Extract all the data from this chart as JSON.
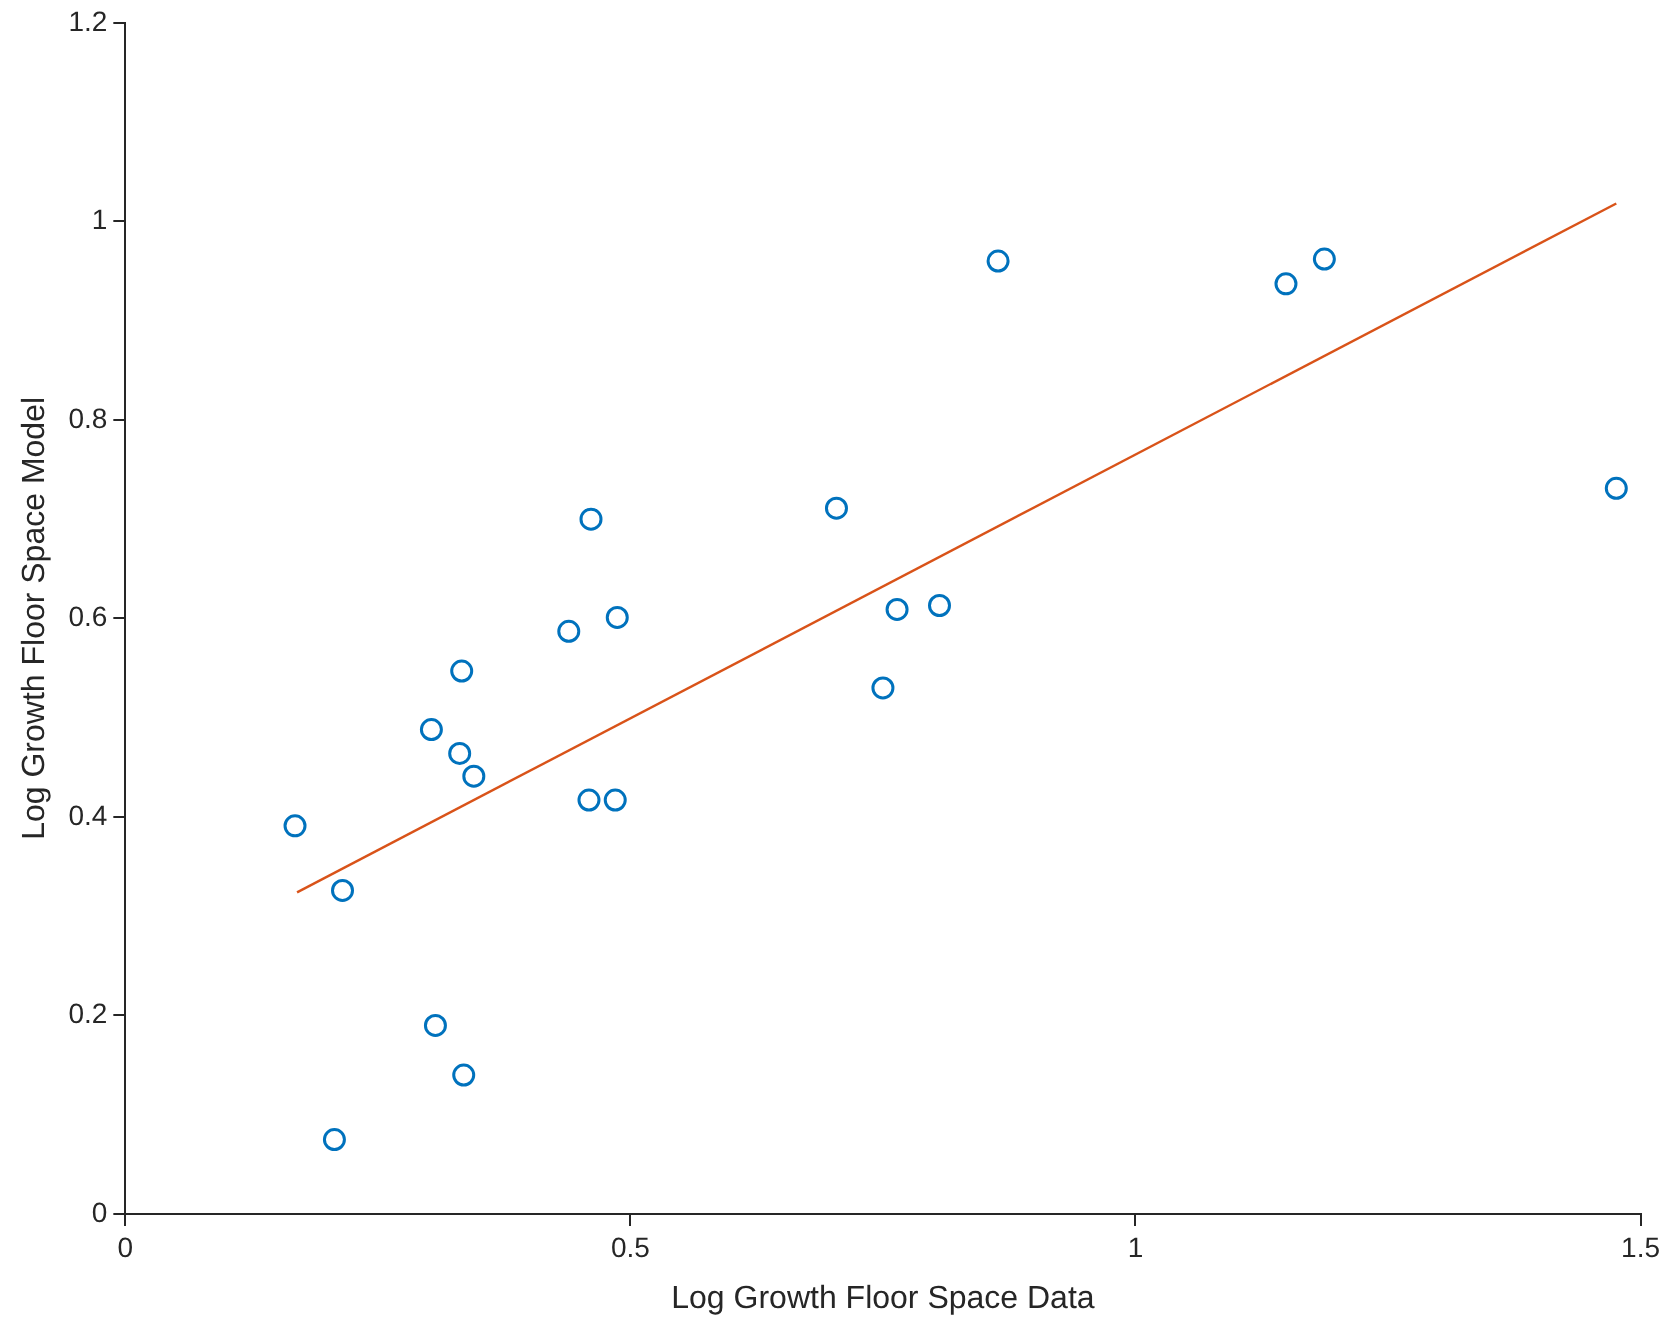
{
  "chart_data": {
    "type": "scatter",
    "xlabel": "Log Growth Floor Space Data",
    "ylabel": "Log Growth Floor Space Model",
    "xlim": [
      0,
      1.5
    ],
    "xticks": [
      0,
      0.5,
      1,
      1.5
    ],
    "ylim": [
      0,
      1.2
    ],
    "yticks": [
      0,
      0.2,
      0.4,
      0.6,
      0.8,
      1,
      1.2
    ],
    "legend": false,
    "series": [
      {
        "type": "scatter",
        "marker": "circle",
        "color": "#0072bd",
        "x": [
          0.168,
          0.215,
          0.207,
          0.303,
          0.307,
          0.331,
          0.333,
          0.335,
          0.345,
          0.439,
          0.461,
          0.459,
          0.487,
          0.485,
          0.704,
          0.75,
          0.764,
          0.806,
          0.864,
          1.149,
          1.187,
          1.476
        ],
        "values": [
          0.391,
          0.326,
          0.075,
          0.488,
          0.19,
          0.464,
          0.547,
          0.14,
          0.441,
          0.587,
          0.7,
          0.417,
          0.601,
          0.417,
          0.711,
          0.53,
          0.609,
          0.613,
          0.96,
          0.937,
          0.962,
          0.731
        ]
      },
      {
        "type": "line",
        "marker": "none",
        "color": "#d95319",
        "x": [
          0.17,
          1.476
        ],
        "values": [
          0.324,
          1.018
        ]
      }
    ]
  }
}
